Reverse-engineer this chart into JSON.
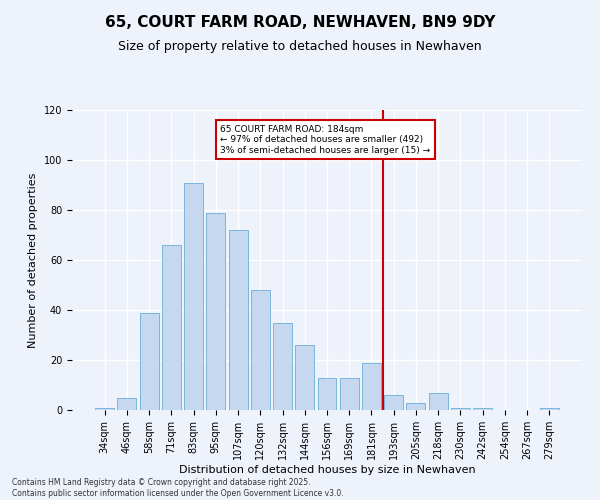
{
  "title": "65, COURT FARM ROAD, NEWHAVEN, BN9 9DY",
  "subtitle": "Size of property relative to detached houses in Newhaven",
  "xlabel": "Distribution of detached houses by size in Newhaven",
  "ylabel": "Number of detached properties",
  "footer1": "Contains HM Land Registry data © Crown copyright and database right 2025.",
  "footer2": "Contains public sector information licensed under the Open Government Licence v3.0.",
  "bar_labels": [
    "34sqm",
    "46sqm",
    "58sqm",
    "71sqm",
    "83sqm",
    "95sqm",
    "107sqm",
    "120sqm",
    "132sqm",
    "144sqm",
    "156sqm",
    "169sqm",
    "181sqm",
    "193sqm",
    "205sqm",
    "218sqm",
    "230sqm",
    "242sqm",
    "254sqm",
    "267sqm",
    "279sqm"
  ],
  "bar_values": [
    1,
    5,
    39,
    66,
    91,
    79,
    72,
    48,
    35,
    26,
    13,
    13,
    19,
    6,
    3,
    7,
    1,
    1,
    0,
    0,
    1
  ],
  "bar_color": "#c5d8f0",
  "bar_edge_color": "#6aaed6",
  "vline_bar_index": 12,
  "vline_color": "#cc0000",
  "annotation_text": "65 COURT FARM ROAD: 184sqm\n← 97% of detached houses are smaller (492)\n3% of semi-detached houses are larger (15) →",
  "annotation_box_color": "#cc0000",
  "ylim": [
    0,
    120
  ],
  "yticks": [
    0,
    20,
    40,
    60,
    80,
    100,
    120
  ],
  "background_color": "#eef2fb",
  "grid_color": "#ffffff",
  "title_fontsize": 11,
  "subtitle_fontsize": 9,
  "tick_fontsize": 7,
  "ylabel_fontsize": 8,
  "xlabel_fontsize": 8
}
